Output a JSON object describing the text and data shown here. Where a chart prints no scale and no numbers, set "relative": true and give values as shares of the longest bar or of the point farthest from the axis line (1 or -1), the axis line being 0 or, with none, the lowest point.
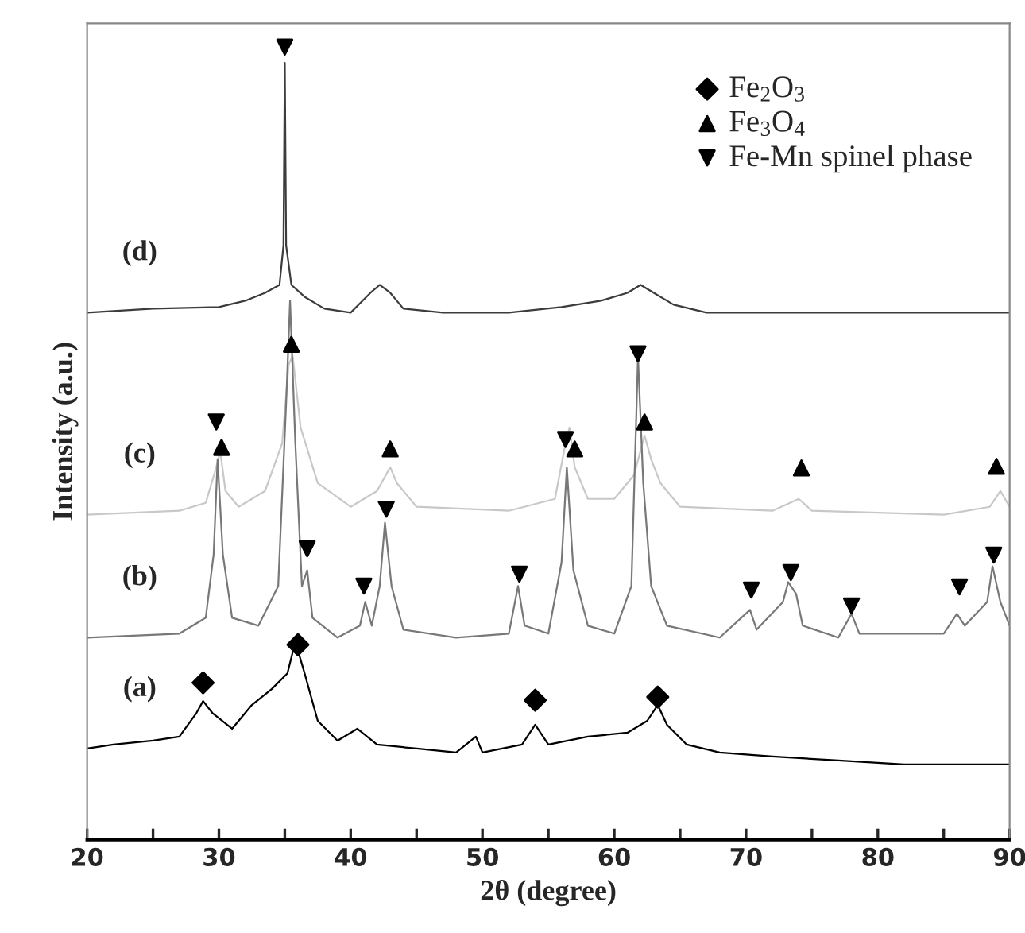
{
  "chart_data": {
    "type": "line",
    "relative": true,
    "xlabel": "2θ (degree)",
    "ylabel": "Intensity (a.u.)",
    "xlim": [
      20,
      90
    ],
    "xticks": [
      20,
      {
        "value": 25,
        "label": null
      },
      30,
      {
        "value": 35,
        "label": null
      },
      40,
      {
        "value": 45,
        "label": null
      },
      50,
      {
        "value": 55,
        "label": null
      },
      60,
      {
        "value": 65,
        "label": null
      },
      70,
      {
        "value": 75,
        "label": null
      },
      80,
      {
        "value": 85,
        "label": null
      },
      90
    ],
    "tick_labels": "x",
    "legend": "top right",
    "grid": false,
    "annotations": [
      "(d)",
      "(c)",
      "(b)",
      "(a)"
    ],
    "series": [
      {
        "color": "#3c3c3c",
        "x": [
          20,
          25,
          30,
          32,
          33.5,
          34.6,
          34.9,
          35.0,
          35.1,
          35.5,
          36.5,
          38,
          40,
          41.5,
          42.2,
          43,
          44,
          47,
          52,
          56,
          59,
          61,
          62,
          63,
          64.5,
          67,
          75,
          85,
          90
        ],
        "values": [
          0.665,
          0.67,
          0.672,
          0.68,
          0.69,
          0.7,
          0.75,
          0.98,
          0.75,
          0.7,
          0.685,
          0.67,
          0.665,
          0.69,
          0.7,
          0.69,
          0.67,
          0.665,
          0.665,
          0.672,
          0.68,
          0.69,
          0.7,
          0.69,
          0.675,
          0.665,
          0.665,
          0.665,
          0.665
        ]
      },
      {
        "color": "#c8c8c8",
        "x": [
          20,
          27,
          29,
          29.8,
          30.1,
          30.5,
          31.5,
          33.5,
          34.8,
          35.3,
          35.6,
          36.2,
          37.5,
          40,
          42,
          43,
          43.5,
          45,
          52,
          55.5,
          56.3,
          56.6,
          57,
          58,
          60,
          61.5,
          62.3,
          62.8,
          63.5,
          65,
          72,
          74,
          75,
          85,
          88.5,
          89.3,
          90
        ],
        "values": [
          0.41,
          0.415,
          0.425,
          0.47,
          0.49,
          0.44,
          0.42,
          0.44,
          0.5,
          0.6,
          0.61,
          0.52,
          0.45,
          0.42,
          0.44,
          0.47,
          0.45,
          0.42,
          0.415,
          0.43,
          0.5,
          0.52,
          0.47,
          0.43,
          0.43,
          0.46,
          0.51,
          0.48,
          0.45,
          0.42,
          0.415,
          0.43,
          0.415,
          0.41,
          0.42,
          0.44,
          0.42
        ]
      },
      {
        "color": "#787878",
        "x": [
          20,
          27,
          29,
          29.6,
          29.9,
          30.3,
          31,
          33,
          34.5,
          35.1,
          35.4,
          35.8,
          36.3,
          36.7,
          37.1,
          39,
          40.7,
          41.1,
          41.6,
          42.2,
          42.6,
          43.1,
          44,
          48,
          52,
          52.7,
          53.2,
          55,
          56.0,
          56.4,
          56.9,
          58,
          60,
          61.3,
          61.8,
          62.2,
          62.8,
          64,
          68,
          70.3,
          70.8,
          72.8,
          73.2,
          73.8,
          74.3,
          77,
          78,
          78.6,
          85,
          86,
          86.6,
          88.3,
          88.7,
          89.3,
          90
        ],
        "values": [
          0.255,
          0.26,
          0.28,
          0.36,
          0.48,
          0.36,
          0.28,
          0.27,
          0.32,
          0.55,
          0.68,
          0.5,
          0.32,
          0.34,
          0.28,
          0.255,
          0.27,
          0.3,
          0.27,
          0.32,
          0.4,
          0.32,
          0.265,
          0.255,
          0.26,
          0.32,
          0.27,
          0.26,
          0.35,
          0.47,
          0.34,
          0.27,
          0.26,
          0.32,
          0.61,
          0.45,
          0.32,
          0.27,
          0.255,
          0.29,
          0.265,
          0.3,
          0.325,
          0.31,
          0.27,
          0.255,
          0.285,
          0.26,
          0.26,
          0.285,
          0.27,
          0.3,
          0.345,
          0.3,
          0.27
        ]
      },
      {
        "color": "#000000",
        "x": [
          20,
          22,
          25,
          27,
          28.3,
          28.8,
          29.5,
          31,
          32.5,
          34,
          35.2,
          35.8,
          36.5,
          37.5,
          39,
          40.5,
          42,
          45,
          48,
          49.5,
          50,
          53,
          54,
          55,
          58,
          61,
          62.5,
          63.3,
          64,
          65.5,
          68,
          72,
          77,
          82,
          86,
          90
        ],
        "values": [
          0.115,
          0.12,
          0.125,
          0.13,
          0.16,
          0.175,
          0.16,
          0.14,
          0.17,
          0.19,
          0.21,
          0.25,
          0.21,
          0.15,
          0.125,
          0.14,
          0.12,
          0.115,
          0.11,
          0.13,
          0.11,
          0.12,
          0.145,
          0.12,
          0.13,
          0.135,
          0.15,
          0.17,
          0.145,
          0.12,
          0.11,
          0.105,
          0.1,
          0.095,
          0.095,
          0.095
        ]
      },
      {
        "type": "scatter",
        "name": "Fe$_{2}$O$_{3}$",
        "marker": "diamond",
        "color": "#000000",
        "x": [
          28.8,
          36,
          54,
          63.3
        ],
        "values": [
          0.198,
          0.246,
          0.176,
          0.18
        ]
      },
      {
        "type": "scatter",
        "name": "Fe$_{3}$O$_{4}$",
        "marker": "triangle",
        "color": "#000000",
        "x": [
          30.2,
          35.5,
          43,
          57,
          62.3,
          74.2,
          89
        ],
        "values": [
          0.495,
          0.625,
          0.493,
          0.493,
          0.527,
          0.469,
          0.471
        ]
      },
      {
        "type": "scatter",
        "name": "Fe-Mn spinel phase",
        "marker": "triangle_down",
        "color": "#000000",
        "x": [
          35,
          29.8,
          61.8,
          56.3,
          42.7,
          36.7,
          41,
          52.8,
          70.4,
          73.4,
          78,
          86.2,
          88.8
        ],
        "values": [
          1.0,
          0.527,
          0.613,
          0.505,
          0.417,
          0.367,
          0.32,
          0.335,
          0.315,
          0.337,
          0.295,
          0.319,
          0.359
        ]
      }
    ]
  }
}
